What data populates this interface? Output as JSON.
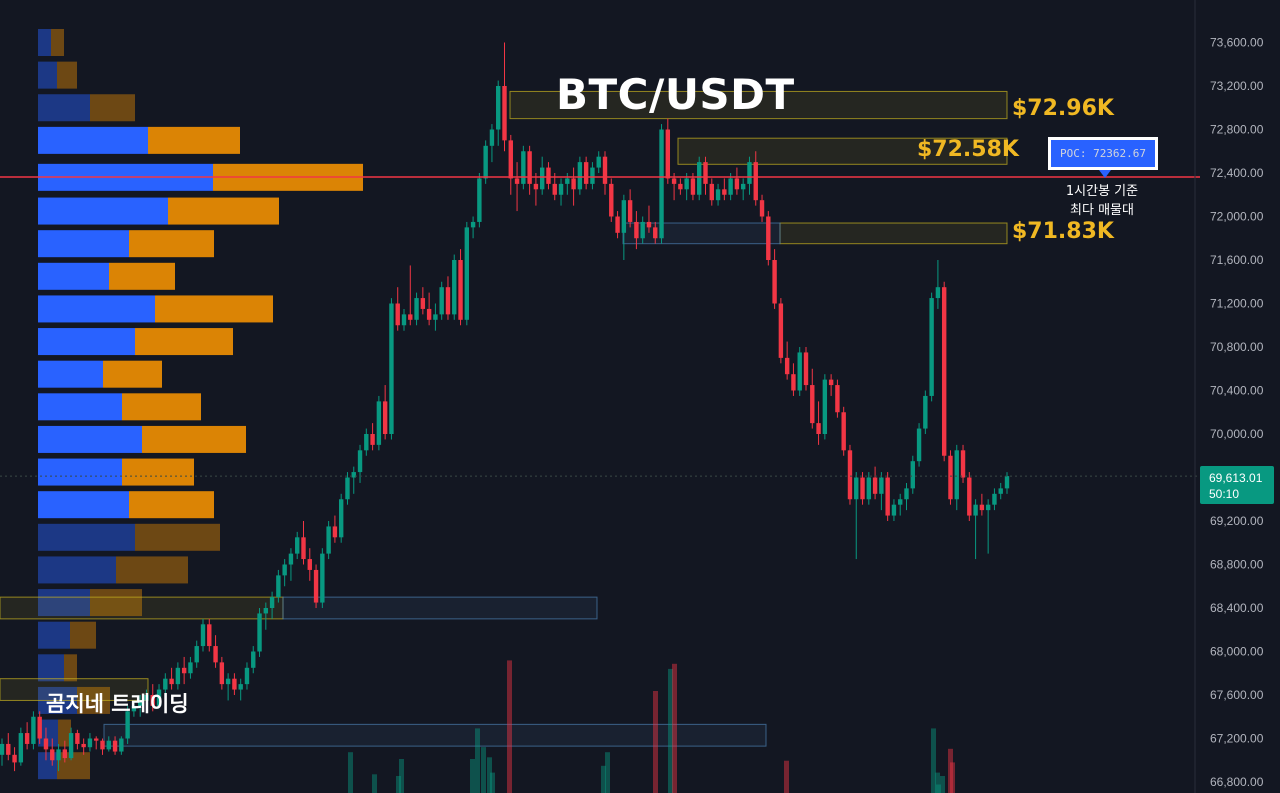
{
  "title": "BTC/USDT",
  "watermark": "곰지네 트레이딩",
  "levels": [
    {
      "label": "$72.96K",
      "price": 72960
    },
    {
      "label": "$72.58K",
      "price": 72580
    },
    {
      "label": "$71.83K",
      "price": 71830
    }
  ],
  "poc": {
    "label": "POC: 72362.67",
    "price": 72362.67,
    "note_lines": [
      "1시간봉 기준",
      "최다 매물대"
    ]
  },
  "last_price": {
    "value": "69,613.01",
    "countdown": "50:10",
    "price": 69613.01
  },
  "colors": {
    "up": "#089981",
    "down": "#f23645",
    "poc_line": "#f23645",
    "level_text": "#f0b823",
    "buy_volume": "#2962ff",
    "sell_volume": "#ff9800",
    "background": "#131722",
    "axis_text": "#b2b5be"
  },
  "chart_data": {
    "type": "candlestick",
    "symbol": "BTC/USDT",
    "interval": "1h",
    "y_axis_ticks": [
      "73,600.00",
      "73,200.00",
      "72,800.00",
      "72,400.00",
      "72,000.00",
      "71,600.00",
      "71,200.00",
      "70,800.00",
      "70,400.00",
      "70,000.00",
      "69,200.00",
      "68,800.00",
      "68,400.00",
      "68,000.00",
      "67,600.00",
      "67,200.00",
      "66,800.00"
    ],
    "y_range": [
      66760,
      73820
    ],
    "candles": [
      [
        67050,
        67200,
        66950,
        67150
      ],
      [
        67150,
        67250,
        67000,
        67050
      ],
      [
        67050,
        67120,
        66900,
        66980
      ],
      [
        66980,
        67300,
        66950,
        67250
      ],
      [
        67250,
        67350,
        67100,
        67150
      ],
      [
        67150,
        67450,
        67100,
        67400
      ],
      [
        67400,
        67450,
        67150,
        67200
      ],
      [
        67200,
        67300,
        67000,
        67100
      ],
      [
        67100,
        67200,
        66950,
        67000
      ],
      [
        67000,
        67150,
        66900,
        67100
      ],
      [
        67100,
        67180,
        66980,
        67020
      ],
      [
        67020,
        67300,
        67000,
        67250
      ],
      [
        67250,
        67280,
        67100,
        67150
      ],
      [
        67150,
        67200,
        67050,
        67120
      ],
      [
        67120,
        67250,
        67080,
        67200
      ],
      [
        67200,
        67220,
        67100,
        67180
      ],
      [
        67180,
        67200,
        67050,
        67100
      ],
      [
        67100,
        67220,
        67080,
        67180
      ],
      [
        67180,
        67220,
        67050,
        67080
      ],
      [
        67080,
        67220,
        67050,
        67200
      ],
      [
        67200,
        67500,
        67150,
        67450
      ],
      [
        67450,
        67550,
        67400,
        67500
      ],
      [
        67500,
        67600,
        67400,
        67550
      ],
      [
        67550,
        67650,
        67450,
        67600
      ],
      [
        67600,
        67700,
        67450,
        67500
      ],
      [
        67500,
        67700,
        67480,
        67650
      ],
      [
        67650,
        67800,
        67600,
        67750
      ],
      [
        67750,
        67850,
        67650,
        67700
      ],
      [
        67700,
        67900,
        67650,
        67850
      ],
      [
        67850,
        67950,
        67700,
        67800
      ],
      [
        67800,
        67950,
        67750,
        67900
      ],
      [
        67900,
        68100,
        67850,
        68050
      ],
      [
        68050,
        68300,
        68000,
        68250
      ],
      [
        68250,
        68300,
        68000,
        68050
      ],
      [
        68050,
        68150,
        67850,
        67900
      ],
      [
        67900,
        67950,
        67650,
        67700
      ],
      [
        67700,
        67800,
        67550,
        67750
      ],
      [
        67750,
        67800,
        67600,
        67650
      ],
      [
        67650,
        67750,
        67550,
        67700
      ],
      [
        67700,
        67900,
        67650,
        67850
      ],
      [
        67850,
        68050,
        67800,
        68000
      ],
      [
        68000,
        68400,
        67950,
        68350
      ],
      [
        68350,
        68450,
        68200,
        68400
      ],
      [
        68400,
        68550,
        68300,
        68500
      ],
      [
        68500,
        68750,
        68450,
        68700
      ],
      [
        68700,
        68850,
        68600,
        68800
      ],
      [
        68800,
        68950,
        68650,
        68900
      ],
      [
        68900,
        69100,
        68850,
        69050
      ],
      [
        69050,
        69200,
        68800,
        68850
      ],
      [
        68850,
        68950,
        68650,
        68750
      ],
      [
        68750,
        68800,
        68400,
        68450
      ],
      [
        68450,
        68950,
        68400,
        68900
      ],
      [
        68900,
        69200,
        68850,
        69150
      ],
      [
        69150,
        69250,
        69000,
        69050
      ],
      [
        69050,
        69450,
        69000,
        69400
      ],
      [
        69400,
        69650,
        69350,
        69600
      ],
      [
        69600,
        69700,
        69450,
        69650
      ],
      [
        69650,
        69900,
        69550,
        69850
      ],
      [
        69850,
        70050,
        69800,
        70000
      ],
      [
        70000,
        70100,
        69850,
        69900
      ],
      [
        69900,
        70350,
        69850,
        70300
      ],
      [
        70300,
        70450,
        69950,
        70000
      ],
      [
        70000,
        71250,
        69950,
        71200
      ],
      [
        71200,
        71350,
        70950,
        71000
      ],
      [
        71000,
        71150,
        70950,
        71100
      ],
      [
        71100,
        71550,
        71000,
        71050
      ],
      [
        71050,
        71300,
        71000,
        71250
      ],
      [
        71250,
        71350,
        71100,
        71150
      ],
      [
        71150,
        71300,
        71000,
        71050
      ],
      [
        71050,
        71200,
        70950,
        71100
      ],
      [
        71100,
        71400,
        71050,
        71350
      ],
      [
        71350,
        71450,
        71050,
        71100
      ],
      [
        71100,
        71650,
        71050,
        71600
      ],
      [
        71600,
        71700,
        71000,
        71050
      ],
      [
        71050,
        71950,
        71000,
        71900
      ],
      [
        71900,
        72000,
        71800,
        71950
      ],
      [
        71950,
        72400,
        71900,
        72350
      ],
      [
        72350,
        72700,
        72300,
        72650
      ],
      [
        72650,
        72850,
        72500,
        72800
      ],
      [
        72800,
        73250,
        72650,
        73200
      ],
      [
        73200,
        73600,
        72600,
        72700
      ],
      [
        72700,
        72750,
        72200,
        72350
      ],
      [
        72350,
        72500,
        72050,
        72300
      ],
      [
        72300,
        72650,
        72250,
        72600
      ],
      [
        72600,
        72650,
        72200,
        72300
      ],
      [
        72300,
        72400,
        72100,
        72250
      ],
      [
        72250,
        72550,
        72200,
        72450
      ],
      [
        72450,
        72500,
        72250,
        72300
      ],
      [
        72300,
        72400,
        72150,
        72200
      ],
      [
        72200,
        72350,
        72100,
        72300
      ],
      [
        72300,
        72400,
        72200,
        72350
      ],
      [
        72350,
        72450,
        72100,
        72250
      ],
      [
        72250,
        72550,
        72200,
        72500
      ],
      [
        72500,
        72550,
        72250,
        72300
      ],
      [
        72300,
        72500,
        72250,
        72450
      ],
      [
        72450,
        72600,
        72400,
        72550
      ],
      [
        72550,
        72600,
        72200,
        72300
      ],
      [
        72300,
        72350,
        71950,
        72000
      ],
      [
        72000,
        72050,
        71800,
        71850
      ],
      [
        71850,
        72200,
        71600,
        72150
      ],
      [
        72150,
        72250,
        71900,
        71950
      ],
      [
        71950,
        72050,
        71700,
        71800
      ],
      [
        71800,
        72000,
        71750,
        71950
      ],
      [
        71950,
        72100,
        71850,
        71900
      ],
      [
        71900,
        71950,
        71750,
        71800
      ],
      [
        71800,
        72850,
        71750,
        72800
      ],
      [
        72800,
        72900,
        72300,
        72350
      ],
      [
        72350,
        72400,
        72150,
        72300
      ],
      [
        72300,
        72350,
        72200,
        72250
      ],
      [
        72250,
        72400,
        72150,
        72350
      ],
      [
        72350,
        72400,
        72150,
        72200
      ],
      [
        72200,
        72550,
        72150,
        72500
      ],
      [
        72500,
        72550,
        72200,
        72300
      ],
      [
        72300,
        72350,
        72100,
        72150
      ],
      [
        72150,
        72300,
        72100,
        72250
      ],
      [
        72250,
        72350,
        72150,
        72200
      ],
      [
        72200,
        72400,
        72150,
        72350
      ],
      [
        72350,
        72450,
        72200,
        72250
      ],
      [
        72250,
        72350,
        72150,
        72300
      ],
      [
        72300,
        72550,
        72200,
        72500
      ],
      [
        72500,
        72600,
        72100,
        72150
      ],
      [
        72150,
        72200,
        71950,
        72000
      ],
      [
        72000,
        72050,
        71550,
        71600
      ],
      [
        71600,
        71700,
        71150,
        71200
      ],
      [
        71200,
        71250,
        70650,
        70700
      ],
      [
        70700,
        70850,
        70500,
        70550
      ],
      [
        70550,
        70650,
        70350,
        70400
      ],
      [
        70400,
        70800,
        70350,
        70750
      ],
      [
        70750,
        70800,
        70400,
        70450
      ],
      [
        70450,
        70600,
        70050,
        70100
      ],
      [
        70100,
        70300,
        69900,
        70000
      ],
      [
        70000,
        70550,
        69950,
        70500
      ],
      [
        70500,
        70550,
        70350,
        70450
      ],
      [
        70450,
        70500,
        70150,
        70200
      ],
      [
        70200,
        70250,
        69800,
        69850
      ],
      [
        69850,
        69900,
        69350,
        69400
      ],
      [
        69400,
        69650,
        68850,
        69600
      ],
      [
        69600,
        69650,
        69350,
        69400
      ],
      [
        69400,
        69650,
        69350,
        69600
      ],
      [
        69600,
        69700,
        69400,
        69450
      ],
      [
        69450,
        69650,
        69300,
        69600
      ],
      [
        69600,
        69650,
        69200,
        69250
      ],
      [
        69250,
        69400,
        69200,
        69350
      ],
      [
        69350,
        69450,
        69250,
        69400
      ],
      [
        69400,
        69550,
        69300,
        69500
      ],
      [
        69500,
        69800,
        69450,
        69750
      ],
      [
        69750,
        70100,
        69700,
        70050
      ],
      [
        70050,
        70400,
        70000,
        70350
      ],
      [
        70350,
        71300,
        70300,
        71250
      ],
      [
        71250,
        71600,
        71150,
        71350
      ],
      [
        71350,
        71400,
        69750,
        69800
      ],
      [
        69800,
        69850,
        69350,
        69400
      ],
      [
        69400,
        69900,
        69300,
        69850
      ],
      [
        69850,
        69900,
        69550,
        69600
      ],
      [
        69600,
        69650,
        69200,
        69250
      ],
      [
        69250,
        69400,
        68850,
        69350
      ],
      [
        69350,
        69450,
        69250,
        69300
      ],
      [
        69300,
        69400,
        68900,
        69350
      ],
      [
        69350,
        69500,
        69300,
        69450
      ],
      [
        69450,
        69550,
        69400,
        69500
      ],
      [
        69500,
        69650,
        69450,
        69613
      ]
    ],
    "session_volume": [
      {
        "value": 24,
        "dir": "up"
      },
      {
        "value": 11,
        "dir": "up"
      },
      {
        "value": 20,
        "dir": "up"
      },
      {
        "value": 38,
        "dir": "up"
      },
      {
        "value": 27,
        "dir": "up"
      },
      {
        "value": 21,
        "dir": "up"
      },
      {
        "value": 12,
        "dir": "up"
      },
      {
        "value": 78,
        "dir": "down"
      },
      {
        "value": 73,
        "dir": "up"
      },
      {
        "value": 76,
        "dir": "down"
      },
      {
        "value": 19,
        "dir": "down"
      },
      {
        "value": 10,
        "dir": "up"
      },
      {
        "value": 26,
        "dir": "down"
      },
      {
        "value": 10,
        "dir": "up"
      },
      {
        "value": 20,
        "dir": "up"
      },
      {
        "value": 16,
        "dir": "up"
      },
      {
        "value": 24,
        "dir": "up"
      },
      {
        "value": 60,
        "dir": "down"
      },
      {
        "value": 18,
        "dir": "down"
      },
      {
        "value": 38,
        "dir": "up"
      },
      {
        "value": 12,
        "dir": "up"
      },
      {
        "value": 5,
        "dir": "up"
      }
    ],
    "volume_profile": [
      {
        "price": 73600,
        "buy": 13,
        "sell": 13,
        "value_area": false
      },
      {
        "price": 73300,
        "buy": 19,
        "sell": 20,
        "value_area": false
      },
      {
        "price": 73000,
        "buy": 52,
        "sell": 45,
        "value_area": false
      },
      {
        "price": 72700,
        "buy": 110,
        "sell": 92,
        "value_area": true
      },
      {
        "price": 72360,
        "buy": 175,
        "sell": 150,
        "value_area": true
      },
      {
        "price": 72050,
        "buy": 130,
        "sell": 111,
        "value_area": true
      },
      {
        "price": 71750,
        "buy": 91,
        "sell": 85,
        "value_area": true
      },
      {
        "price": 71450,
        "buy": 71,
        "sell": 66,
        "value_area": true
      },
      {
        "price": 71150,
        "buy": 117,
        "sell": 118,
        "value_area": true
      },
      {
        "price": 70850,
        "buy": 97,
        "sell": 98,
        "value_area": true
      },
      {
        "price": 70550,
        "buy": 65,
        "sell": 59,
        "value_area": true
      },
      {
        "price": 70250,
        "buy": 84,
        "sell": 79,
        "value_area": true
      },
      {
        "price": 69950,
        "buy": 104,
        "sell": 104,
        "value_area": true
      },
      {
        "price": 69650,
        "buy": 84,
        "sell": 72,
        "value_area": true
      },
      {
        "price": 69350,
        "buy": 91,
        "sell": 85,
        "value_area": true
      },
      {
        "price": 69050,
        "buy": 97,
        "sell": 85,
        "value_area": false
      },
      {
        "price": 68750,
        "buy": 78,
        "sell": 72,
        "value_area": false
      },
      {
        "price": 68450,
        "buy": 52,
        "sell": 52,
        "value_area": false
      },
      {
        "price": 68150,
        "buy": 32,
        "sell": 26,
        "value_area": false
      },
      {
        "price": 67850,
        "buy": 26,
        "sell": 13,
        "value_area": false
      },
      {
        "price": 67550,
        "buy": 39,
        "sell": 33,
        "value_area": false
      },
      {
        "price": 67250,
        "buy": 20,
        "sell": 13,
        "value_area": false
      },
      {
        "price": 66950,
        "buy": 19,
        "sell": 33,
        "value_area": false
      }
    ],
    "zones": [
      {
        "from_price": 72900,
        "to_price": 73150,
        "color": "yellow"
      },
      {
        "from_price": 72480,
        "to_price": 72720,
        "color": "yellow"
      },
      {
        "from_price": 71750,
        "to_price": 71940,
        "color": "yellow"
      },
      {
        "from_price": 71750,
        "to_price": 71940,
        "color": "blue"
      },
      {
        "from_price": 68300,
        "to_price": 68500,
        "color": "yellow"
      },
      {
        "from_price": 68300,
        "to_price": 68500,
        "color": "blue"
      },
      {
        "from_price": 67550,
        "to_price": 67750,
        "color": "yellow"
      },
      {
        "from_price": 67130,
        "to_price": 67330,
        "color": "blue"
      }
    ]
  }
}
